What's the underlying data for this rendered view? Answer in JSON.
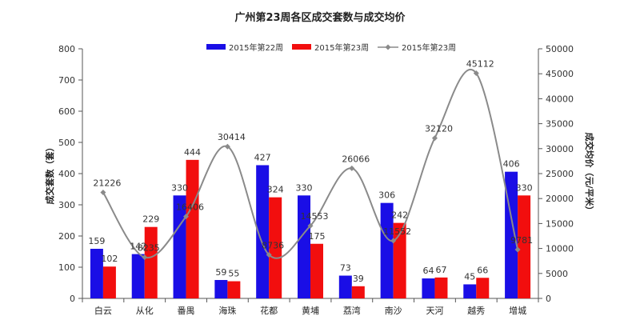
{
  "chart_data": {
    "type": "bar",
    "title": "广州第23周各区成交套数与成交均价",
    "categories": [
      "白云",
      "从化",
      "番禺",
      "海珠",
      "花都",
      "黄埔",
      "荔湾",
      "南沙",
      "天河",
      "越秀",
      "增城"
    ],
    "series": [
      {
        "name": "2015年第22周",
        "kind": "bar",
        "axis": "left",
        "color": "#1a0ee6",
        "values": [
          159,
          142,
          330,
          59,
          427,
          330,
          73,
          306,
          64,
          45,
          406
        ],
        "labels": [
          "159",
          "142",
          "330",
          "59",
          "427",
          "330",
          "73",
          "306",
          "64",
          "45",
          "406"
        ]
      },
      {
        "name": "2015年第23周",
        "kind": "bar",
        "axis": "left",
        "color": "#f20e0e",
        "values": [
          102,
          229,
          444,
          55,
          324,
          175,
          39,
          242,
          67,
          66,
          330
        ],
        "labels": [
          "102",
          "229",
          "444",
          "55",
          "324",
          "175",
          "39",
          "242",
          "67",
          "66",
          "330"
        ]
      },
      {
        "name": "2015年第23周",
        "kind": "line",
        "axis": "right",
        "color": "#8a8a8a",
        "values": [
          21226,
          8235,
          16406,
          30414,
          8736,
          14553,
          26066,
          11552,
          32120,
          45112,
          9781
        ],
        "labels": [
          "21226",
          "8235",
          "16406",
          "30414",
          "8736",
          "14553",
          "26066",
          "11552",
          "32120",
          "45112",
          "9781"
        ]
      }
    ],
    "ylabel": "成交套数（套）",
    "ylim": [
      0,
      800
    ],
    "yticks": [
      "0",
      "100",
      "200",
      "300",
      "400",
      "500",
      "600",
      "700",
      "800"
    ],
    "y2label": "成交均价（元/平米）",
    "y2lim": [
      0,
      50000
    ],
    "y2ticks": [
      "0",
      "5000",
      "10000",
      "15000",
      "20000",
      "25000",
      "30000",
      "35000",
      "40000",
      "45000",
      "50000"
    ],
    "legend": "top-center",
    "grid": false
  }
}
